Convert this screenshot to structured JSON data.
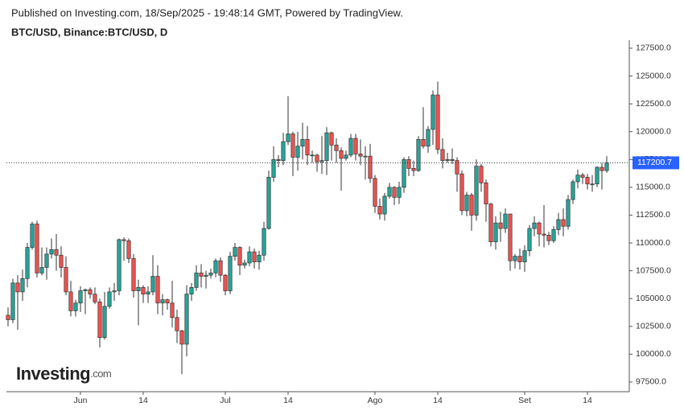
{
  "chart_data": {
    "type": "candlestick",
    "header": "Published on Investing.com, 18/Sep/2025 - 19:48:14 GMT, Powered by TradingView.",
    "title": "BTC/USD, Binance:BTC/USD, D",
    "logo": {
      "name": "Investing",
      "suffix": ".com"
    },
    "up_color": "#26a69a",
    "down_color": "#ef5350",
    "last_price_color": "#2962ff",
    "ylim": [
      96630,
      128220
    ],
    "yticks": [
      {
        "value": 97500,
        "label": "97500.0"
      },
      {
        "value": 100000,
        "label": "100000.0"
      },
      {
        "value": 102500,
        "label": "102500.0"
      },
      {
        "value": 105000,
        "label": "105000.0"
      },
      {
        "value": 107500,
        "label": "107500.0"
      },
      {
        "value": 110000,
        "label": "110000.0"
      },
      {
        "value": 112500,
        "label": "112500.0"
      },
      {
        "value": 115000,
        "label": "115000.0"
      },
      {
        "value": 117500,
        "label": "117500.0"
      },
      {
        "value": 120000,
        "label": "120000.0"
      },
      {
        "value": 122500,
        "label": "122500.0"
      },
      {
        "value": 125000,
        "label": "125000.0"
      },
      {
        "value": 127500,
        "label": "127500.0"
      }
    ],
    "xticks": [
      {
        "value": "2025-06-01",
        "label": "Jun"
      },
      {
        "value": "2025-06-14",
        "label": "14"
      },
      {
        "value": "2025-07-01",
        "label": "Jul"
      },
      {
        "value": "2025-07-14",
        "label": "14"
      },
      {
        "value": "2025-08-01",
        "label": "Ago"
      },
      {
        "value": "2025-08-14",
        "label": "14"
      },
      {
        "value": "2025-09-01",
        "label": "Set"
      },
      {
        "value": "2025-09-14",
        "label": "14"
      }
    ],
    "x": [
      "2025-05-17",
      "2025-05-18",
      "2025-05-19",
      "2025-05-20",
      "2025-05-21",
      "2025-05-22",
      "2025-05-23",
      "2025-05-24",
      "2025-05-25",
      "2025-05-26",
      "2025-05-27",
      "2025-05-28",
      "2025-05-29",
      "2025-05-30",
      "2025-05-31",
      "2025-06-01",
      "2025-06-02",
      "2025-06-03",
      "2025-06-04",
      "2025-06-05",
      "2025-06-06",
      "2025-06-07",
      "2025-06-08",
      "2025-06-09",
      "2025-06-10",
      "2025-06-11",
      "2025-06-12",
      "2025-06-13",
      "2025-06-14",
      "2025-06-15",
      "2025-06-16",
      "2025-06-17",
      "2025-06-18",
      "2025-06-19",
      "2025-06-20",
      "2025-06-21",
      "2025-06-22",
      "2025-06-23",
      "2025-06-24",
      "2025-06-25",
      "2025-06-26",
      "2025-06-27",
      "2025-06-28",
      "2025-06-29",
      "2025-06-30",
      "2025-07-01",
      "2025-07-02",
      "2025-07-03",
      "2025-07-04",
      "2025-07-05",
      "2025-07-06",
      "2025-07-07",
      "2025-07-08",
      "2025-07-09",
      "2025-07-10",
      "2025-07-11",
      "2025-07-12",
      "2025-07-13",
      "2025-07-14",
      "2025-07-15",
      "2025-07-16",
      "2025-07-17",
      "2025-07-18",
      "2025-07-19",
      "2025-07-20",
      "2025-07-21",
      "2025-07-22",
      "2025-07-23",
      "2025-07-24",
      "2025-07-25",
      "2025-07-26",
      "2025-07-27",
      "2025-07-28",
      "2025-07-29",
      "2025-07-30",
      "2025-07-31",
      "2025-08-01",
      "2025-08-02",
      "2025-08-03",
      "2025-08-04",
      "2025-08-05",
      "2025-08-06",
      "2025-08-07",
      "2025-08-08",
      "2025-08-09",
      "2025-08-10",
      "2025-08-11",
      "2025-08-12",
      "2025-08-13",
      "2025-08-14",
      "2025-08-15",
      "2025-08-16",
      "2025-08-17",
      "2025-08-18",
      "2025-08-19",
      "2025-08-20",
      "2025-08-21",
      "2025-08-22",
      "2025-08-23",
      "2025-08-24",
      "2025-08-25",
      "2025-08-26",
      "2025-08-27",
      "2025-08-28",
      "2025-08-29",
      "2025-08-30",
      "2025-08-31",
      "2025-09-01",
      "2025-09-02",
      "2025-09-03",
      "2025-09-04",
      "2025-09-05",
      "2025-09-06",
      "2025-09-07",
      "2025-09-08",
      "2025-09-09",
      "2025-09-10",
      "2025-09-11",
      "2025-09-12",
      "2025-09-13",
      "2025-09-14",
      "2025-09-15",
      "2025-09-16",
      "2025-09-17",
      "2025-09-18"
    ],
    "candles": [
      [
        103500,
        104200,
        102500,
        103100
      ],
      [
        103100,
        106800,
        102800,
        106400
      ],
      [
        106400,
        107100,
        102200,
        105600
      ],
      [
        105600,
        107600,
        104800,
        106800
      ],
      [
        106800,
        110000,
        106000,
        109600
      ],
      [
        109600,
        111900,
        109400,
        111700
      ],
      [
        111700,
        112000,
        106900,
        107300
      ],
      [
        107300,
        109600,
        107100,
        107800
      ],
      [
        107800,
        109600,
        106700,
        109000
      ],
      [
        109000,
        110400,
        108600,
        109400
      ],
      [
        109400,
        110800,
        107500,
        108900
      ],
      [
        108900,
        109700,
        106900,
        107800
      ],
      [
        107800,
        108800,
        105300,
        105600
      ],
      [
        105600,
        106600,
        103400,
        103900
      ],
      [
        103900,
        104900,
        103400,
        104600
      ],
      [
        104600,
        106100,
        103800,
        105700
      ],
      [
        105700,
        105900,
        103600,
        105800
      ],
      [
        105800,
        106000,
        105000,
        105400
      ],
      [
        105400,
        106000,
        104500,
        104700
      ],
      [
        104700,
        105000,
        100600,
        101500
      ],
      [
        101500,
        105600,
        101300,
        104300
      ],
      [
        104300,
        106000,
        104100,
        105600
      ],
      [
        105600,
        106400,
        104800,
        105700
      ],
      [
        105700,
        110400,
        105300,
        110300
      ],
      [
        110300,
        110500,
        108400,
        110200
      ],
      [
        110200,
        110400,
        108200,
        108600
      ],
      [
        108600,
        109000,
        105100,
        105700
      ],
      [
        105700,
        106700,
        102600,
        106000
      ],
      [
        106000,
        106200,
        104600,
        105400
      ],
      [
        105400,
        106100,
        104600,
        105600
      ],
      [
        105600,
        108900,
        105300,
        107000
      ],
      [
        107000,
        108000,
        103600,
        104600
      ],
      [
        104600,
        105400,
        103500,
        104900
      ],
      [
        104900,
        105000,
        104000,
        104600
      ],
      [
        104600,
        106600,
        102400,
        103300
      ],
      [
        103300,
        104000,
        101000,
        102100
      ],
      [
        102100,
        102200,
        98200,
        100900
      ],
      [
        100900,
        106200,
        99800,
        105400
      ],
      [
        105400,
        106400,
        104800,
        106000
      ],
      [
        106000,
        108000,
        105700,
        107300
      ],
      [
        107300,
        108100,
        106000,
        107000
      ],
      [
        107000,
        107500,
        105900,
        107100
      ],
      [
        107100,
        107700,
        106800,
        107300
      ],
      [
        107300,
        108600,
        106900,
        108400
      ],
      [
        108400,
        108700,
        106500,
        107100
      ],
      [
        107100,
        107200,
        105300,
        105700
      ],
      [
        105700,
        109200,
        105400,
        108800
      ],
      [
        108800,
        110000,
        108400,
        109600
      ],
      [
        109600,
        109700,
        107100,
        108000
      ],
      [
        108000,
        108500,
        107700,
        108200
      ],
      [
        108200,
        109700,
        107900,
        109200
      ],
      [
        109200,
        109500,
        107700,
        108300
      ],
      [
        108300,
        109300,
        107600,
        108900
      ],
      [
        108900,
        111900,
        108400,
        111300
      ],
      [
        111300,
        116500,
        111200,
        115900
      ],
      [
        115900,
        118700,
        115500,
        117500
      ],
      [
        117500,
        117900,
        116800,
        117400
      ],
      [
        117400,
        119900,
        117000,
        119100
      ],
      [
        119100,
        123200,
        118800,
        119800
      ],
      [
        119800,
        120000,
        116000,
        117700
      ],
      [
        117700,
        120000,
        116500,
        118700
      ],
      [
        118700,
        120800,
        117500,
        119300
      ],
      [
        119300,
        120500,
        117000,
        117900
      ],
      [
        117900,
        118300,
        117200,
        117900
      ],
      [
        117900,
        118000,
        116400,
        117300
      ],
      [
        117300,
        119600,
        116200,
        117400
      ],
      [
        117400,
        120400,
        116100,
        119900
      ],
      [
        119900,
        120000,
        117400,
        118800
      ],
      [
        118800,
        119400,
        117200,
        118300
      ],
      [
        118300,
        118600,
        114700,
        117600
      ],
      [
        117600,
        118300,
        117400,
        117900
      ],
      [
        117900,
        119800,
        117700,
        119400
      ],
      [
        119400,
        119800,
        117400,
        118000
      ],
      [
        118000,
        119300,
        117000,
        117800
      ],
      [
        117800,
        118700,
        115700,
        117800
      ],
      [
        117800,
        118900,
        115400,
        115800
      ],
      [
        115800,
        116100,
        112700,
        113300
      ],
      [
        113300,
        114000,
        112100,
        112600
      ],
      [
        112600,
        114500,
        112000,
        114200
      ],
      [
        114200,
        115400,
        114000,
        115000
      ],
      [
        115000,
        115100,
        113400,
        114100
      ],
      [
        114100,
        115500,
        113500,
        115000
      ],
      [
        115000,
        117700,
        114500,
        117500
      ],
      [
        117500,
        117800,
        116000,
        116700
      ],
      [
        116700,
        117400,
        116000,
        116500
      ],
      [
        116500,
        119600,
        116400,
        119300
      ],
      [
        119300,
        122200,
        118500,
        118700
      ],
      [
        118700,
        120500,
        118100,
        120200
      ],
      [
        120200,
        123700,
        118800,
        123300
      ],
      [
        123300,
        124500,
        118000,
        118400
      ],
      [
        118400,
        119400,
        116700,
        117400
      ],
      [
        117400,
        118100,
        117200,
        117500
      ],
      [
        117500,
        118500,
        117100,
        117400
      ],
      [
        117400,
        117700,
        114600,
        116200
      ],
      [
        116200,
        116500,
        112500,
        112900
      ],
      [
        112900,
        114600,
        112400,
        114300
      ],
      [
        114300,
        114500,
        111100,
        112500
      ],
      [
        112500,
        117500,
        112000,
        116900
      ],
      [
        116900,
        117100,
        114600,
        115400
      ],
      [
        115400,
        115700,
        111900,
        113500
      ],
      [
        113500,
        113600,
        109700,
        110100
      ],
      [
        110100,
        112400,
        109400,
        111800
      ],
      [
        111800,
        112800,
        110100,
        111300
      ],
      [
        111300,
        113100,
        110900,
        112600
      ],
      [
        112600,
        112600,
        107500,
        108400
      ],
      [
        108400,
        109000,
        107700,
        108800
      ],
      [
        108800,
        109500,
        107600,
        108300
      ],
      [
        108300,
        109800,
        107400,
        109300
      ],
      [
        109300,
        111600,
        108800,
        111300
      ],
      [
        111300,
        112400,
        110600,
        111800
      ],
      [
        111800,
        111900,
        109700,
        110800
      ],
      [
        110800,
        113400,
        109600,
        110700
      ],
      [
        110700,
        111000,
        109800,
        110200
      ],
      [
        110200,
        111500,
        110000,
        111200
      ],
      [
        111200,
        112700,
        110700,
        112100
      ],
      [
        112100,
        113100,
        110600,
        111500
      ],
      [
        111500,
        114300,
        111200,
        113900
      ],
      [
        113900,
        115700,
        113500,
        115500
      ],
      [
        115500,
        116600,
        114900,
        116100
      ],
      [
        116100,
        116300,
        115300,
        115900
      ],
      [
        115900,
        116200,
        114800,
        115300
      ],
      [
        115300,
        116100,
        114600,
        115300
      ],
      [
        115300,
        116900,
        115000,
        116800
      ],
      [
        116800,
        117200,
        114800,
        116500
      ],
      [
        116500,
        117800,
        116300,
        117200.7
      ]
    ]
  }
}
